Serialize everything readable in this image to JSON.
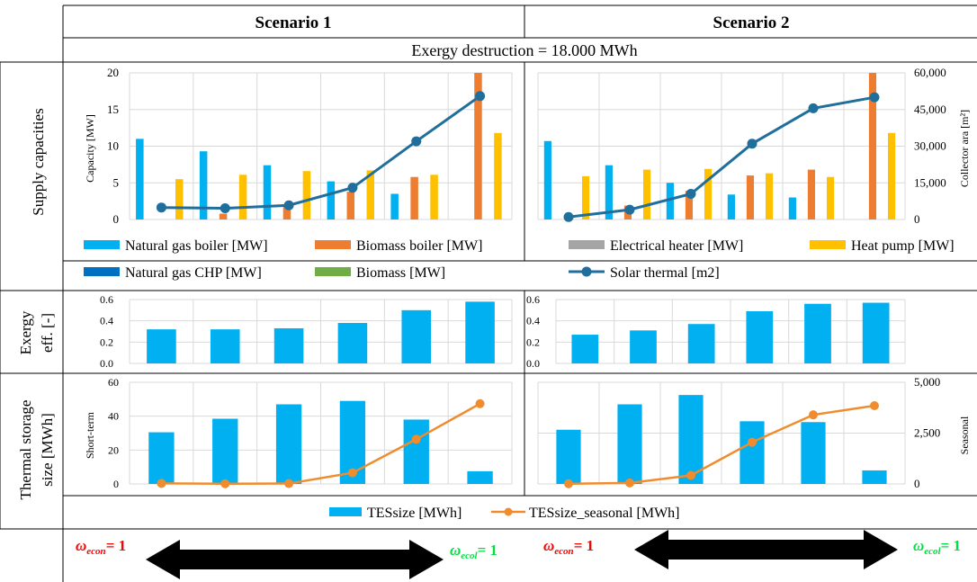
{
  "header": {
    "scenario1": "Scenario 1",
    "scenario2": "Scenario 2",
    "exergy_destruction": "Exergy destruction = 18.000 MWh"
  },
  "row_labels": {
    "supply": "Supply capacities",
    "exergy_line1": "Exergy",
    "exergy_line2": "eff. [-]",
    "storage_line1": "Thermal storage",
    "storage_line2": "size [MWh]"
  },
  "legends": {
    "supply": [
      {
        "label": "Natural gas boiler [MW]",
        "color": "#00b0f0",
        "kind": "bar"
      },
      {
        "label": "Biomass boiler [MW]",
        "color": "#ed7d31",
        "kind": "bar"
      },
      {
        "label": "Electrical heater [MW]",
        "color": "#a5a5a5",
        "kind": "bar"
      },
      {
        "label": "Heat pump [MW]",
        "color": "#ffc000",
        "kind": "bar"
      },
      {
        "label": "Natural gas CHP [MW]",
        "color": "#0070c0",
        "kind": "bar"
      },
      {
        "label": "Biomass [MW]",
        "color": "#70ad47",
        "kind": "bar"
      },
      {
        "label": "Solar thermal  [m2]",
        "color": "#1f6e9c",
        "kind": "line"
      }
    ],
    "storage": [
      {
        "label": "TESsize [MWh]",
        "color": "#00b0f0",
        "kind": "bar"
      },
      {
        "label": "TESsize_seasonal [MWh]",
        "color": "#f08c2e",
        "kind": "line"
      }
    ]
  },
  "weights": {
    "econ_left": "ω",
    "econ_sub": "econ",
    "econ_eq": "= 1",
    "ecol_left": "ω",
    "ecol_sub": "ecol",
    "ecol_eq": "= 1"
  },
  "chart_data": [
    {
      "type": "bar",
      "panel": "supply-scenario-1",
      "ylabel": "Capacity [MW]",
      "ylim": [
        0,
        20
      ],
      "yticks": [
        "0",
        "5",
        "10",
        "15",
        "20"
      ],
      "groups": 6,
      "series": [
        {
          "name": "Natural gas boiler [MW]",
          "color": "#00b0f0",
          "values": [
            11,
            9.3,
            7.4,
            5.2,
            3.5,
            0
          ]
        },
        {
          "name": "Biomass boiler [MW]",
          "color": "#ed7d31",
          "values": [
            0,
            0.8,
            2.1,
            3.8,
            5.8,
            20
          ]
        },
        {
          "name": "Heat pump [MW]",
          "color": "#ffc000",
          "values": [
            5.5,
            6.1,
            6.6,
            6.7,
            6.1,
            11.8
          ]
        }
      ],
      "line": {
        "name": "Solar thermal  [m2]",
        "color": "#1f6e9c",
        "values": [
          4900,
          4600,
          5800,
          13000,
          32000,
          50500
        ]
      },
      "y2lim": [
        0,
        60000
      ]
    },
    {
      "type": "bar",
      "panel": "supply-scenario-2",
      "y2label": "Collector ara [m²]",
      "ylim": [
        0,
        20
      ],
      "y2lim": [
        0,
        60000
      ],
      "y2ticks": [
        "0",
        "15,000",
        "30,000",
        "45,000",
        "60,000"
      ],
      "groups": 6,
      "series": [
        {
          "name": "Natural gas boiler [MW]",
          "color": "#00b0f0",
          "values": [
            10.7,
            7.4,
            5.0,
            3.4,
            3.0,
            0
          ]
        },
        {
          "name": "Biomass boiler [MW]",
          "color": "#ed7d31",
          "values": [
            0,
            1.9,
            3.9,
            6.0,
            6.8,
            20
          ]
        },
        {
          "name": "Heat pump [MW]",
          "color": "#ffc000",
          "values": [
            5.9,
            6.8,
            6.9,
            6.3,
            5.8,
            11.8
          ]
        }
      ],
      "line": {
        "name": "Solar thermal  [m2]",
        "color": "#1f6e9c",
        "values": [
          1000,
          4000,
          10500,
          31000,
          45500,
          50000
        ]
      }
    },
    {
      "type": "bar",
      "panel": "exergy-scenario-1",
      "ylim": [
        0,
        0.6
      ],
      "yticks": [
        "0.0",
        "0.2",
        "0.4",
        "0.6"
      ],
      "values": [
        0.32,
        0.32,
        0.33,
        0.38,
        0.5,
        0.58
      ],
      "color": "#00b0f0"
    },
    {
      "type": "bar",
      "panel": "exergy-scenario-2",
      "ylim": [
        0,
        0.6
      ],
      "yticks": [
        "0.0",
        "0.2",
        "0.4",
        "0.6"
      ],
      "values": [
        0.27,
        0.31,
        0.37,
        0.49,
        0.56,
        0.57
      ],
      "color": "#00b0f0"
    },
    {
      "type": "bar",
      "panel": "storage-scenario-1",
      "ylabel": "Short-term",
      "ylim": [
        0,
        60
      ],
      "yticks": [
        "0",
        "20",
        "40",
        "60"
      ],
      "values": [
        30.5,
        38.5,
        47,
        49,
        38,
        7.5
      ],
      "color": "#00b0f0",
      "line": {
        "name": "TESsize_seasonal [MWh]",
        "color": "#f08c2e",
        "values": [
          30,
          10,
          20,
          550,
          2200,
          3950
        ]
      },
      "y2lim": [
        0,
        5000
      ]
    },
    {
      "type": "bar",
      "panel": "storage-scenario-2",
      "y2label": "Seasonal",
      "ylim": [
        0,
        60
      ],
      "y2lim": [
        0,
        5000
      ],
      "y2ticks": [
        "0",
        "2,500",
        "5,000"
      ],
      "values": [
        32,
        47,
        52.5,
        37,
        36.5,
        8
      ],
      "color": "#00b0f0",
      "line": {
        "name": "TESsize_seasonal [MWh]",
        "color": "#f08c2e",
        "values": [
          10,
          50,
          420,
          2050,
          3400,
          3850
        ]
      }
    }
  ]
}
